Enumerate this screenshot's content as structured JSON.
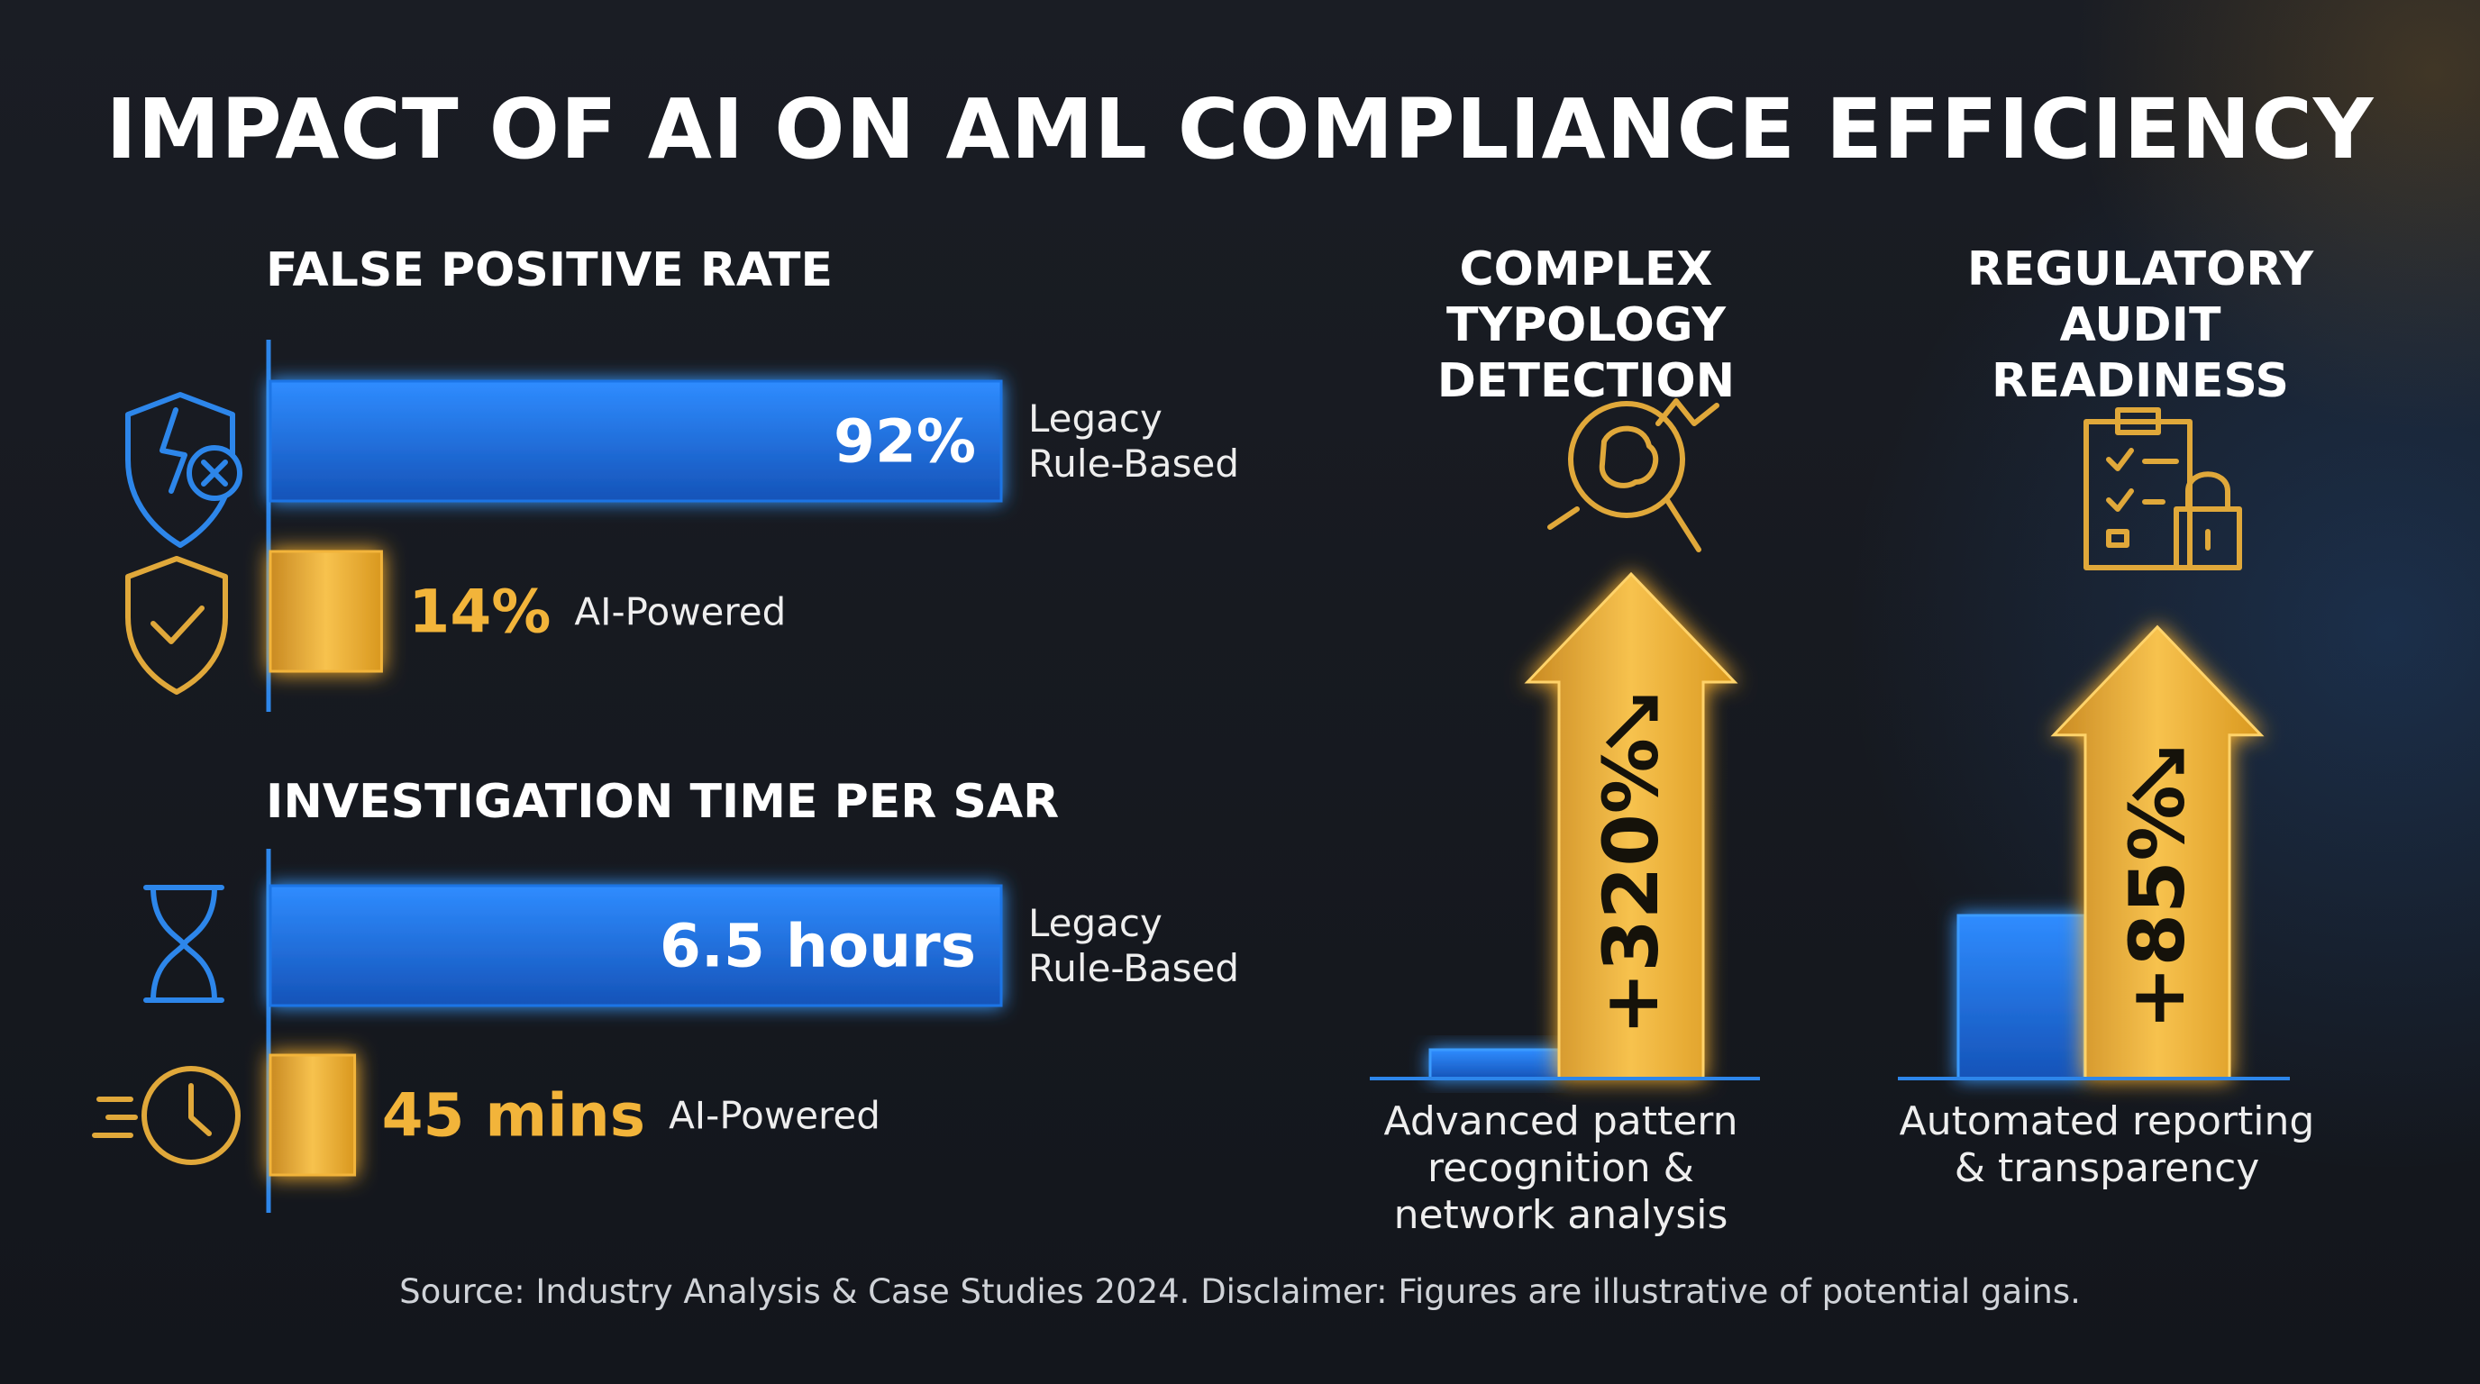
{
  "title": "IMPACT OF AI ON AML COMPLIANCE EFFICIENCY",
  "source": "Source: Industry Analysis & Case Studies 2024. Disclaimer: Figures are illustrative of potential gains.",
  "chart_data": [
    {
      "type": "hbar",
      "title": "FALSE POSITIVE RATE",
      "categories": [
        "Legacy Rule-Based",
        "AI-Powered"
      ],
      "values": [
        92,
        14
      ],
      "value_labels": [
        "92%",
        "14%"
      ],
      "colors": [
        "#1f74e6",
        "#f2b43a"
      ]
    },
    {
      "type": "hbar",
      "title": "INVESTIGATION TIME PER SAR",
      "categories": [
        "Legacy Rule-Based",
        "AI-Powered"
      ],
      "values": [
        6.5,
        0.75
      ],
      "value_labels": [
        "6.5 hours",
        "45 mins"
      ],
      "colors": [
        "#1f74e6",
        "#f2b43a"
      ]
    },
    {
      "type": "gain",
      "title": "COMPLEX TYPOLOGY DETECTION",
      "values": [
        320
      ],
      "value_labels": [
        "+320%"
      ],
      "caption": "Advanced pattern recognition & network analysis",
      "color": "#f2b43a"
    },
    {
      "type": "gain",
      "title": "REGULATORY AUDIT READINESS",
      "values": [
        85
      ],
      "value_labels": [
        "+85%"
      ],
      "caption": "Automated reporting & transparency",
      "color": "#f2b43a"
    }
  ]
}
